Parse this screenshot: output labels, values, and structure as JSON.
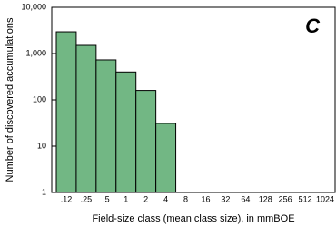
{
  "chart_data": {
    "type": "bar",
    "panel_label": "C",
    "x_label": "Field-size class (mean class size), in mmBOE",
    "y_label": "Number of discovered accumulations",
    "categories": [
      ".12",
      ".25",
      ".5",
      "1",
      "2",
      "4",
      "8",
      "16",
      "32",
      "64",
      "128",
      "256",
      "512",
      "1024"
    ],
    "values": [
      2950,
      1500,
      730,
      400,
      160,
      31,
      null,
      null,
      null,
      null,
      null,
      null,
      null,
      null
    ],
    "color": "#72b784",
    "log_scale": true,
    "ylim": [
      1,
      10000
    ],
    "yticks": [
      1,
      10,
      100,
      {
        "value": 1000,
        "label": "1,000"
      },
      {
        "value": 10000,
        "label": "10,000"
      }
    ],
    "grid": false
  }
}
